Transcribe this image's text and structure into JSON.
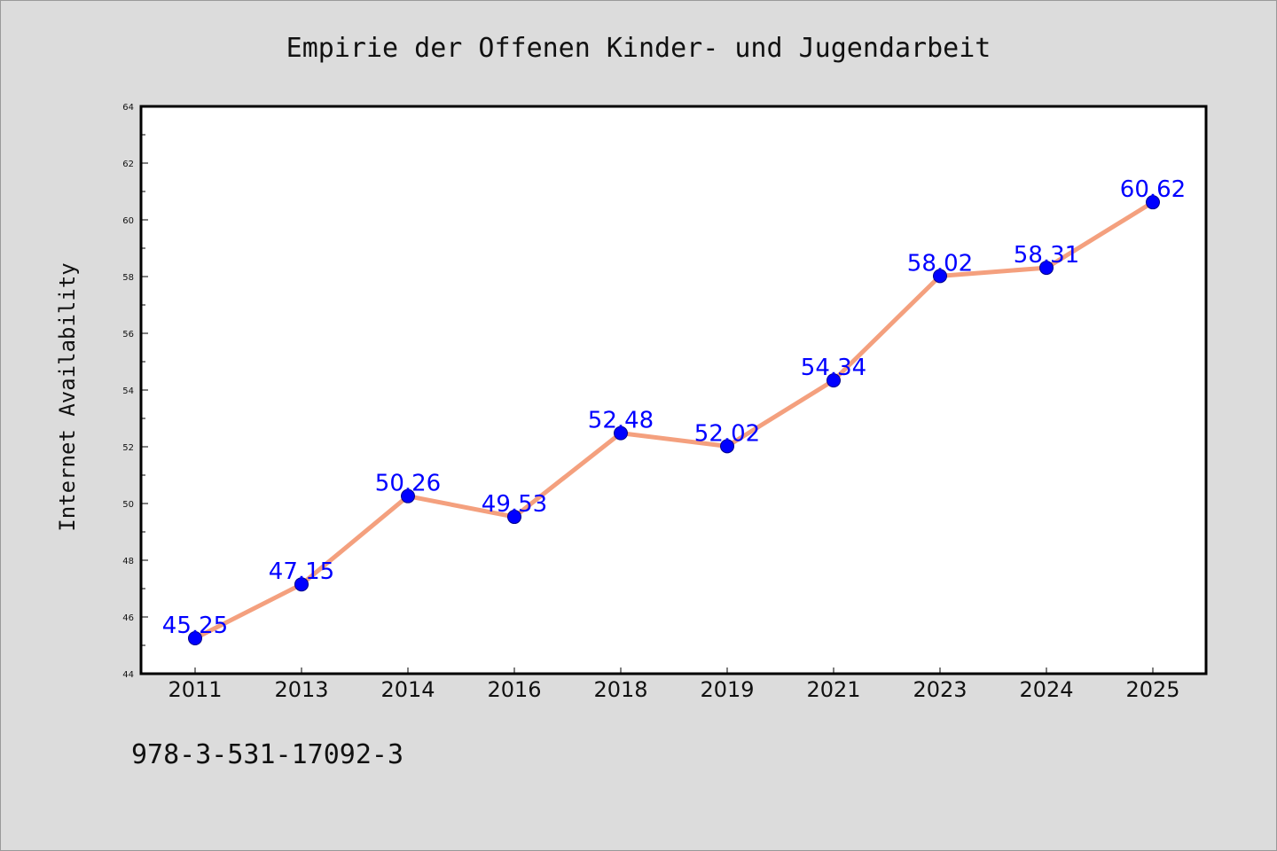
{
  "chart_data": {
    "type": "line",
    "title": "Empirie der Offenen Kinder- und Jugendarbeit",
    "ylabel": "Internet Availability",
    "xlabel": "",
    "categories": [
      "2011",
      "2013",
      "2014",
      "2016",
      "2018",
      "2019",
      "2021",
      "2023",
      "2024",
      "2025"
    ],
    "series": [
      {
        "values": [
          45.25,
          47.15,
          50.26,
          49.53,
          52.48,
          52.02,
          54.34,
          58.02,
          58.31,
          60.62
        ]
      }
    ],
    "ylim": [
      44,
      64
    ],
    "yticks": [
      44,
      46,
      48,
      50,
      52,
      54,
      56,
      58,
      60,
      62,
      64
    ],
    "grid": false,
    "legend": "none",
    "colors": {
      "line": "#f4a07e",
      "marker": "#0000ff",
      "marker_edge": "#00008b",
      "data_label": "#0000ff",
      "background": "#dcdcdc",
      "plot_background": "#ffffff"
    }
  },
  "footnote": "978-3-531-17092-3"
}
